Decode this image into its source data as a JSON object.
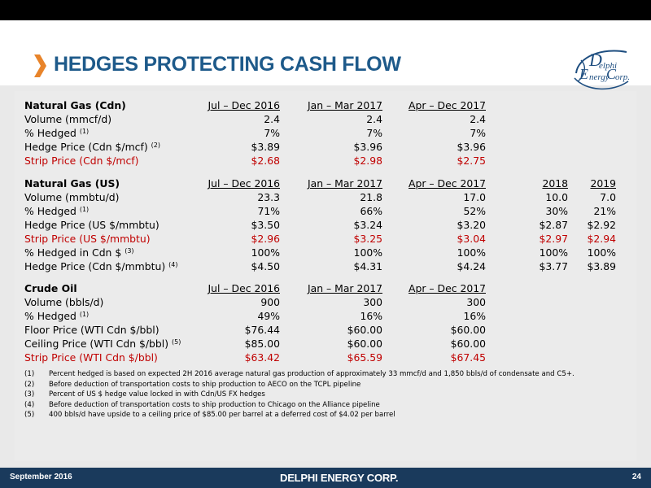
{
  "title": "HEDGES PROTECTING CASH FLOW",
  "logo": {
    "line1": "elphi",
    "line2": "nergy",
    "line3": "orp."
  },
  "colors": {
    "accent": "#e8842a",
    "title": "#1e5a8a",
    "footer": "#1a3a5c",
    "strip_red": "#c00000"
  },
  "sections": {
    "gas_cdn": {
      "header": [
        "Natural Gas (Cdn)",
        "Jul – Dec 2016",
        "Jan – Mar 2017",
        "Apr – Dec 2017"
      ],
      "rows": [
        {
          "label": "Volume (mmcf/d)",
          "sup": "",
          "values": [
            "2.4",
            "2.4",
            "2.4"
          ]
        },
        {
          "label": "% Hedged",
          "sup": "(1)",
          "values": [
            "7%",
            "7%",
            "7%"
          ]
        },
        {
          "label": "Hedge Price (Cdn $/mcf)",
          "sup": "(2)",
          "values": [
            "$3.89",
            "$3.96",
            "$3.96"
          ]
        },
        {
          "label": "Strip Price (Cdn $/mcf)",
          "sup": "",
          "values": [
            "$2.68",
            "$2.98",
            "$2.75"
          ]
        }
      ]
    },
    "gas_us": {
      "header": [
        "Natural Gas (US)",
        "Jul – Dec 2016",
        "Jan – Mar 2017",
        "Apr – Dec 2017",
        "2018",
        "2019"
      ],
      "rows": [
        {
          "label": "Volume (mmbtu/d)",
          "sup": "",
          "values": [
            "23.3",
            "21.8",
            "17.0",
            "10.0",
            "7.0"
          ]
        },
        {
          "label": "% Hedged",
          "sup": "(1)",
          "values": [
            "71%",
            "66%",
            "52%",
            "30%",
            "21%"
          ]
        },
        {
          "label": "Hedge Price (US $/mmbtu)",
          "sup": "",
          "values": [
            "$3.50",
            "$3.24",
            "$3.20",
            "$2.87",
            "$2.92"
          ]
        },
        {
          "label": "Strip Price (US $/mmbtu)",
          "sup": "",
          "values": [
            "$2.96",
            "$3.25",
            "$3.04",
            "$2.97",
            "$2.94"
          ]
        },
        {
          "label": "% Hedged in Cdn $",
          "sup": "(3)",
          "values": [
            "100%",
            "100%",
            "100%",
            "100%",
            "100%"
          ]
        },
        {
          "label": "Hedge Price (Cdn $/mmbtu)",
          "sup": "(4)",
          "values": [
            "$4.50",
            "$4.31",
            "$4.24",
            "$3.77",
            "$3.89"
          ]
        }
      ]
    },
    "crude": {
      "header": [
        "Crude Oil",
        "Jul – Dec 2016",
        "Jan – Mar 2017",
        "Apr – Dec 2017"
      ],
      "rows": [
        {
          "label": "Volume (bbls/d)",
          "sup": "",
          "values": [
            "900",
            "300",
            "300"
          ]
        },
        {
          "label": "% Hedged",
          "sup": "(1)",
          "values": [
            "49%",
            "16%",
            "16%"
          ]
        },
        {
          "label": "Floor Price (WTI Cdn $/bbl)",
          "sup": "",
          "values": [
            "$76.44",
            "$60.00",
            "$60.00"
          ]
        },
        {
          "label": "Ceiling Price (WTI Cdn $/bbl)",
          "sup": "(5)",
          "values": [
            "$85.00",
            "$60.00",
            "$60.00"
          ]
        },
        {
          "label": "Strip Price (WTI Cdn $/bbl)",
          "sup": "",
          "values": [
            "$63.42",
            "$65.59",
            "$67.45"
          ]
        }
      ]
    }
  },
  "footnotes": [
    {
      "num": "(1)",
      "text": "Percent hedged is based on expected 2H 2016 average natural gas production of approximately 33 mmcf/d and 1,850 bbls/d of condensate and C5+."
    },
    {
      "num": "(2)",
      "text": "Before deduction of transportation costs to ship production to AECO on the TCPL pipeline"
    },
    {
      "num": "(3)",
      "text": "Percent of US $ hedge value locked in with Cdn/US FX hedges"
    },
    {
      "num": "(4)",
      "text": "Before deduction of transportation costs to ship production to Chicago on the Alliance pipeline"
    },
    {
      "num": "(5)",
      "text": "400 bbls/d have upside to a ceiling price of $85.00 per barrel at a deferred cost of $4.02 per barrel"
    }
  ],
  "footer": {
    "date": "September 2016",
    "brand": "DELPHI ENERGY CORP.",
    "page": "24"
  }
}
